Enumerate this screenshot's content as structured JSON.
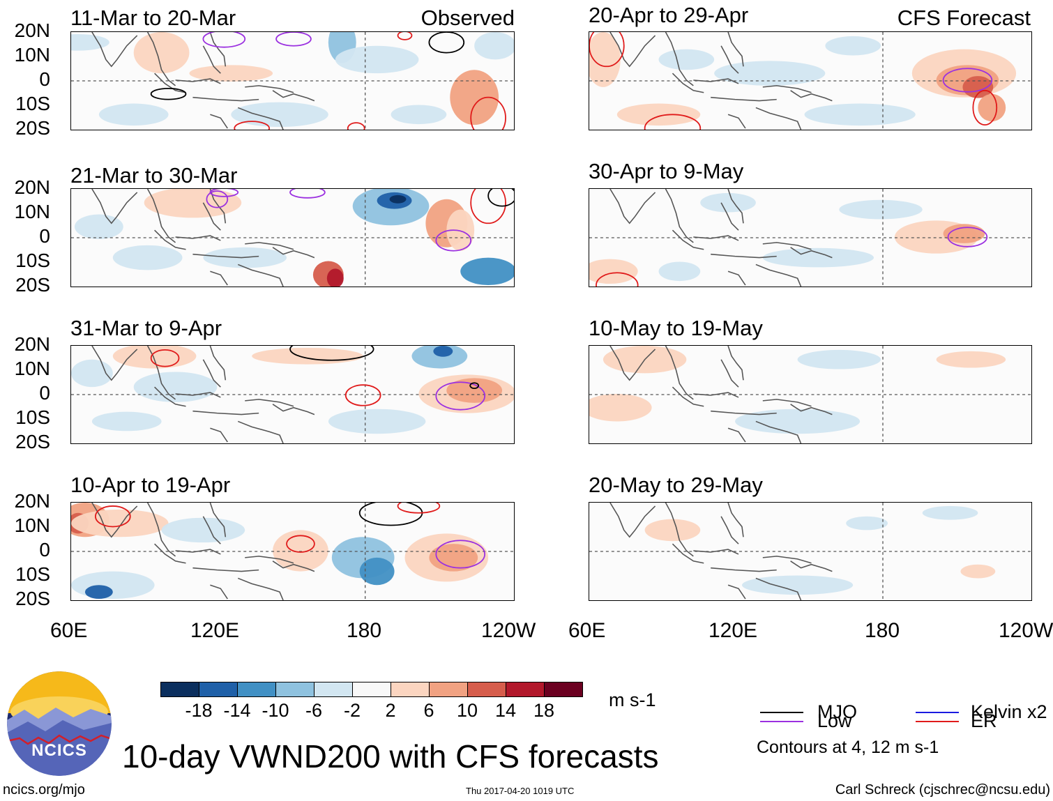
{
  "chart_data": {
    "type": "heatmap",
    "title": "10-day VWND200 with CFS forecasts",
    "variable": "VWND200",
    "units": "m s-1",
    "colorbar": {
      "ticks": [
        "-18",
        "-14",
        "-10",
        "-6",
        "-2",
        "2",
        "6",
        "10",
        "14",
        "18"
      ],
      "colors": [
        "#0b2f5e",
        "#1f60a8",
        "#4190c4",
        "#8fc2df",
        "#d2e6f1",
        "#f8f8f8",
        "#fbd5c0",
        "#f1a282",
        "#d65d4c",
        "#b2182b",
        "#6b0020"
      ]
    },
    "lat_labels": [
      "20N",
      "10N",
      "0",
      "10S",
      "20S"
    ],
    "lon_labels": [
      "60E",
      "120E",
      "180",
      "120W"
    ],
    "lon_labels_right": [
      "60E",
      "120E",
      "180",
      "120W"
    ],
    "columns": [
      {
        "name": "Observed",
        "panels": [
          "11-Mar to 20-Mar",
          "21-Mar to 30-Mar",
          "31-Mar to 9-Apr",
          "10-Apr to 19-Apr"
        ]
      },
      {
        "name": "CFS Forecast",
        "panels": [
          "20-Apr to 29-Apr",
          "30-Apr to 9-May",
          "10-May to 19-May",
          "20-May to 29-May"
        ]
      }
    ],
    "legend": {
      "mjo": "MJO",
      "low": "Low",
      "kelvin": "Kelvin x2",
      "er": "ER",
      "mjo_color": "#000000",
      "low_color": "#9b30e0",
      "kelvin_color": "#1a1ae0",
      "er_color": "#e01a1a",
      "note": "Contours at 4, 12 m s-1"
    }
  },
  "footer": {
    "left": "ncics.org/mjo",
    "center": "Thu 2017-04-20 1019 UTC",
    "right": "Carl Schreck (cjschrec@ncsu.edu)",
    "logo_text": "NCICS"
  }
}
